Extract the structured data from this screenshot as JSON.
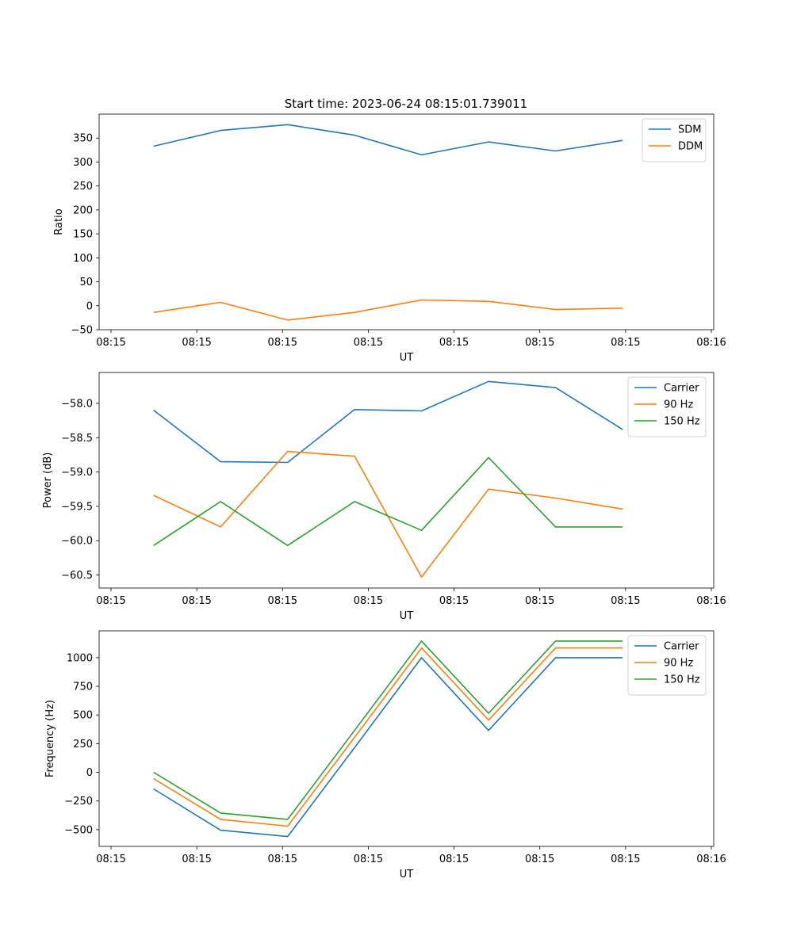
{
  "figure": {
    "title": "Start time: 2023-06-24 08:15:01.739011"
  },
  "chart_data": [
    {
      "type": "line",
      "ylabel": "Ratio",
      "xlabel": "UT",
      "x_tick_labels": [
        "08:15",
        "08:15",
        "08:15",
        "08:15",
        "08:15",
        "08:15",
        "08:15",
        "08:16"
      ],
      "x": [
        1,
        2,
        3,
        4,
        5,
        6,
        7,
        8
      ],
      "xlim": [
        0.187,
        9.36
      ],
      "ylim": [
        -50,
        400
      ],
      "yticks": [
        -50,
        0,
        50,
        100,
        150,
        200,
        250,
        300,
        350
      ],
      "y_tick_labels": [
        "−50",
        "0",
        "50",
        "100",
        "150",
        "200",
        "250",
        "300",
        "350"
      ],
      "legend_position": "top-right",
      "series": [
        {
          "name": "SDM",
          "color": "#1f77b4",
          "values": [
            333,
            366,
            378,
            356,
            315,
            342,
            323,
            345
          ]
        },
        {
          "name": "DDM",
          "color": "#ff7f0e",
          "values": [
            -14,
            7,
            -30,
            -14,
            12,
            9,
            -8,
            -5
          ]
        }
      ]
    },
    {
      "type": "line",
      "ylabel": "Power (dB)",
      "xlabel": "UT",
      "x_tick_labels": [
        "08:15",
        "08:15",
        "08:15",
        "08:15",
        "08:15",
        "08:15",
        "08:15",
        "08:16"
      ],
      "x": [
        1,
        2,
        3,
        4,
        5,
        6,
        7,
        8
      ],
      "xlim": [
        0.187,
        9.36
      ],
      "ylim": [
        -60.69,
        -57.55
      ],
      "yticks": [
        -60.5,
        -60.0,
        -59.5,
        -59.0,
        -58.5,
        -58.0
      ],
      "y_tick_labels": [
        "−60.5",
        "−60.0",
        "−59.5",
        "−59.0",
        "−58.5",
        "−58.0"
      ],
      "legend_position": "top-right",
      "series": [
        {
          "name": "Carrier",
          "color": "#1f77b4",
          "values": [
            -58.1,
            -58.85,
            -58.86,
            -58.09,
            -58.11,
            -57.68,
            -57.77,
            -58.38
          ]
        },
        {
          "name": "90 Hz",
          "color": "#ff7f0e",
          "values": [
            -59.34,
            -59.8,
            -58.7,
            -58.77,
            -60.53,
            -59.25,
            -59.38,
            -59.54
          ]
        },
        {
          "name": "150 Hz",
          "color": "#2ca02c",
          "values": [
            -60.07,
            -59.43,
            -60.07,
            -59.43,
            -59.85,
            -58.79,
            -59.8,
            -59.8
          ]
        }
      ]
    },
    {
      "type": "line",
      "ylabel": "Frequency (Hz)",
      "xlabel": "UT",
      "x_tick_labels": [
        "08:15",
        "08:15",
        "08:15",
        "08:15",
        "08:15",
        "08:15",
        "08:15",
        "08:16"
      ],
      "x": [
        1,
        2,
        3,
        4,
        5,
        6,
        7,
        8
      ],
      "xlim": [
        0.187,
        9.36
      ],
      "ylim": [
        -646,
        1234
      ],
      "yticks": [
        -500,
        -250,
        0,
        250,
        500,
        750,
        1000
      ],
      "y_tick_labels": [
        "−500",
        "−250",
        "0",
        "250",
        "500",
        "750",
        "1000"
      ],
      "legend_position": "top-right",
      "series": [
        {
          "name": "Carrier",
          "color": "#1f77b4",
          "values": [
            -145,
            -505,
            -560,
            215,
            1000,
            365,
            1000,
            1000
          ]
        },
        {
          "name": "90 Hz",
          "color": "#ff7f0e",
          "values": [
            -55,
            -410,
            -470,
            305,
            1085,
            455,
            1085,
            1085
          ]
        },
        {
          "name": "150 Hz",
          "color": "#2ca02c",
          "values": [
            0,
            -355,
            -410,
            365,
            1145,
            515,
            1145,
            1145
          ]
        }
      ]
    }
  ]
}
